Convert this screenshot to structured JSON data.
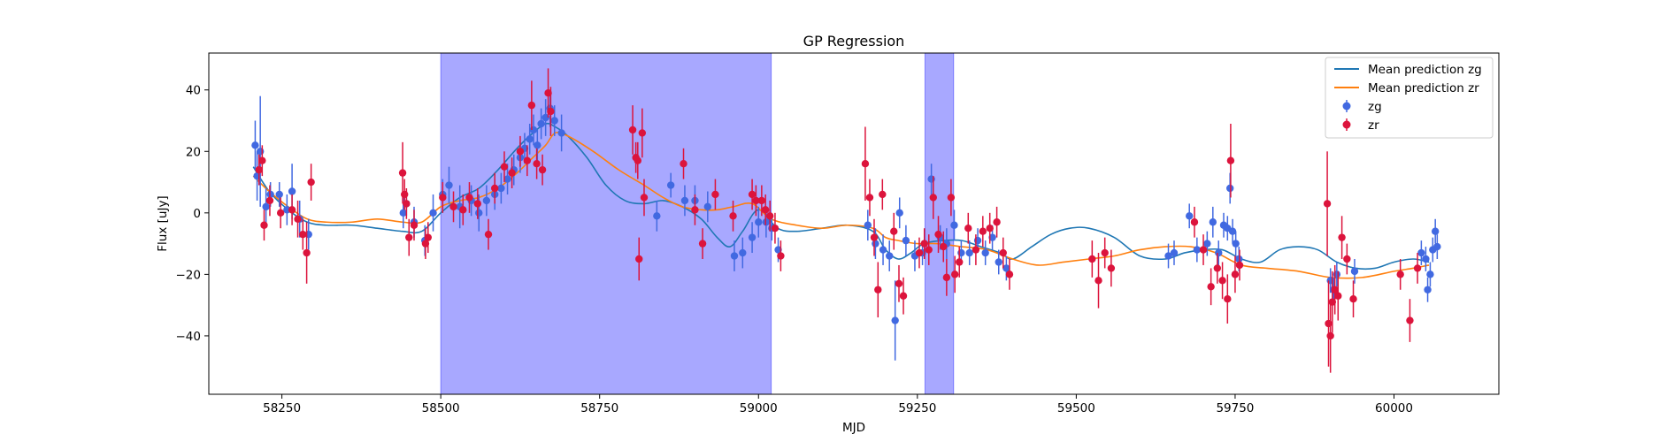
{
  "chart_data": {
    "type": "scatter",
    "title": "GP Regression",
    "xlabel": "MJD",
    "ylabel": "Flux [uJy]",
    "xlim": [
      58135,
      60165
    ],
    "ylim": [
      -59,
      52
    ],
    "xticks": [
      58250,
      58500,
      58750,
      59000,
      59250,
      59500,
      59750,
      60000
    ],
    "xtick_labels": [
      "58250",
      "58500",
      "58750",
      "59000",
      "59250",
      "59500",
      "59750",
      "60000"
    ],
    "yticks": [
      -40,
      -20,
      0,
      20,
      40
    ],
    "ytick_labels": [
      "−40",
      "−20",
      "0",
      "20",
      "40"
    ],
    "legend_position": "upper right",
    "colors": {
      "zg_line": "#1f77b4",
      "zr_line": "#ff7f0e",
      "zg_points": "#4169e1",
      "zr_points": "#dc143c",
      "shade": "#0000ff"
    },
    "shaded_regions": [
      {
        "x0": 58500,
        "x1": 59020
      },
      {
        "x0": 59262,
        "x1": 59307
      }
    ],
    "lines": [
      {
        "name": "Mean prediction zg",
        "x": [
          58205,
          58230,
          58260,
          58290,
          58320,
          58360,
          58400,
          58440,
          58470,
          58500,
          58530,
          58560,
          58590,
          58620,
          58645,
          58665,
          58680,
          58700,
          58730,
          58760,
          58790,
          58820,
          58850,
          58880,
          58910,
          58935,
          58955,
          58975,
          59000,
          59030,
          59060,
          59100,
          59140,
          59180,
          59200,
          59220,
          59240,
          59260,
          59290,
          59320,
          59350,
          59380,
          59400,
          59430,
          59460,
          59490,
          59520,
          59560,
          59600,
          59640,
          59670,
          59700,
          59730,
          59760,
          59790,
          59820,
          59850,
          59880,
          59910,
          59940,
          59970,
          60000,
          60030,
          60055
        ],
        "y": [
          15,
          7,
          1,
          -3,
          -4,
          -4,
          -5,
          -6,
          -6,
          0,
          5,
          8,
          14,
          21,
          26,
          29,
          28,
          25,
          18,
          9,
          4,
          3,
          4,
          2,
          -2,
          -8,
          -11,
          -6,
          1,
          -5,
          -6,
          -5,
          -4,
          -6,
          -12,
          -15,
          -13,
          -10,
          -9,
          -9,
          -11,
          -13,
          -15,
          -11,
          -7,
          -5,
          -5,
          -8,
          -14,
          -15,
          -13,
          -12,
          -12,
          -15,
          -16,
          -12,
          -11,
          -12,
          -16,
          -18,
          -18,
          -16,
          -15,
          -16
        ]
      },
      {
        "name": "Mean prediction zr",
        "x": [
          58205,
          58230,
          58260,
          58290,
          58320,
          58360,
          58400,
          58440,
          58470,
          58500,
          58530,
          58560,
          58590,
          58620,
          58645,
          58665,
          58680,
          58700,
          58740,
          58780,
          58820,
          58850,
          58880,
          58910,
          58935,
          58960,
          58990,
          59020,
          59060,
          59100,
          59140,
          59180,
          59200,
          59220,
          59250,
          59280,
          59320,
          59360,
          59400,
          59440,
          59480,
          59520,
          59560,
          59600,
          59640,
          59680,
          59720,
          59760,
          59800,
          59850,
          59900,
          59950,
          60000,
          60030,
          60055
        ],
        "y": [
          12,
          7,
          2,
          -2,
          -3,
          -3,
          -2,
          -3,
          -3,
          2,
          4,
          5,
          8,
          13,
          18,
          22,
          26,
          25,
          20,
          14,
          9,
          5,
          2,
          1,
          1,
          2,
          3,
          -2,
          -4,
          -5,
          -4,
          -5,
          -8,
          -9,
          -10,
          -10,
          -11,
          -12,
          -15,
          -17,
          -16,
          -15,
          -14,
          -12,
          -11,
          -11,
          -13,
          -17,
          -18,
          -19,
          -21,
          -21,
          -19,
          -18,
          -17
        ]
      }
    ],
    "series": [
      {
        "name": "zg",
        "points": [
          [
            58208,
            22,
            8
          ],
          [
            58211,
            12,
            8
          ],
          [
            58216,
            20,
            18
          ],
          [
            58225,
            2,
            6
          ],
          [
            58232,
            6,
            4
          ],
          [
            58246,
            6,
            4
          ],
          [
            58258,
            1,
            5
          ],
          [
            58266,
            7,
            9
          ],
          [
            58278,
            -2,
            6
          ],
          [
            58292,
            -7,
            5
          ],
          [
            58441,
            0,
            5
          ],
          [
            58446,
            3,
            4
          ],
          [
            58458,
            -3,
            5
          ],
          [
            58475,
            -9,
            5
          ],
          [
            58488,
            0,
            6
          ],
          [
            58503,
            6,
            5
          ],
          [
            58513,
            9,
            6
          ],
          [
            58530,
            2,
            7
          ],
          [
            58548,
            4,
            5
          ],
          [
            58560,
            0,
            6
          ],
          [
            58572,
            4,
            5
          ],
          [
            58585,
            6,
            5
          ],
          [
            58595,
            8,
            5
          ],
          [
            58605,
            11,
            5
          ],
          [
            58615,
            14,
            5
          ],
          [
            58625,
            18,
            5
          ],
          [
            58632,
            21,
            5
          ],
          [
            58640,
            24,
            5
          ],
          [
            58646,
            27,
            5
          ],
          [
            58652,
            22,
            5
          ],
          [
            58658,
            29,
            5
          ],
          [
            58665,
            31,
            6
          ],
          [
            58672,
            34,
            6
          ],
          [
            58679,
            30,
            5
          ],
          [
            58690,
            26,
            6
          ],
          [
            58840,
            -1,
            5
          ],
          [
            58862,
            9,
            4
          ],
          [
            58884,
            4,
            5
          ],
          [
            58900,
            4,
            5
          ],
          [
            58920,
            2,
            5
          ],
          [
            58962,
            -14,
            5
          ],
          [
            58975,
            -13,
            5
          ],
          [
            58990,
            -8,
            5
          ],
          [
            59000,
            -3,
            5
          ],
          [
            59012,
            -3,
            5
          ],
          [
            59021,
            -5,
            4
          ],
          [
            59031,
            -12,
            4
          ],
          [
            59172,
            -4,
            5
          ],
          [
            59184,
            -10,
            5
          ],
          [
            59196,
            -12,
            5
          ],
          [
            59206,
            -14,
            5
          ],
          [
            59215,
            -35,
            13
          ],
          [
            59222,
            0,
            5
          ],
          [
            59232,
            -9,
            5
          ],
          [
            59246,
            -14,
            5
          ],
          [
            59258,
            -13,
            4
          ],
          [
            59272,
            11,
            5
          ],
          [
            59286,
            -8,
            4
          ],
          [
            59296,
            -10,
            5
          ],
          [
            59308,
            -4,
            5
          ],
          [
            59319,
            -13,
            4
          ],
          [
            59332,
            -13,
            4
          ],
          [
            59345,
            -9,
            4
          ],
          [
            59357,
            -13,
            4
          ],
          [
            59368,
            -8,
            4
          ],
          [
            59378,
            -16,
            4
          ],
          [
            59390,
            -18,
            4
          ],
          [
            59645,
            -14,
            4
          ],
          [
            59654,
            -13,
            4
          ],
          [
            59678,
            -1,
            4
          ],
          [
            59690,
            -12,
            4
          ],
          [
            59706,
            -10,
            4
          ],
          [
            59715,
            -3,
            5
          ],
          [
            59724,
            -13,
            4
          ],
          [
            59732,
            -4,
            4
          ],
          [
            59738,
            -5,
            4
          ],
          [
            59742,
            8,
            5
          ],
          [
            59746,
            -6,
            4
          ],
          [
            59751,
            -10,
            4
          ],
          [
            59756,
            -15,
            4
          ],
          [
            59900,
            -22,
            4
          ],
          [
            59905,
            -25,
            4
          ],
          [
            59910,
            -20,
            4
          ],
          [
            59938,
            -19,
            4
          ],
          [
            60043,
            -13,
            4
          ],
          [
            60050,
            -15,
            4
          ],
          [
            60053,
            -25,
            4
          ],
          [
            60057,
            -20,
            4
          ],
          [
            60061,
            -12,
            4
          ],
          [
            60065,
            -6,
            4
          ],
          [
            60068,
            -11,
            4
          ]
        ]
      },
      {
        "name": "zr",
        "points": [
          [
            58214,
            14,
            5
          ],
          [
            58219,
            17,
            5
          ],
          [
            58222,
            -4,
            5
          ],
          [
            58231,
            4,
            5
          ],
          [
            58248,
            0,
            5
          ],
          [
            58266,
            1,
            5
          ],
          [
            58275,
            -2,
            6
          ],
          [
            58283,
            -7,
            5
          ],
          [
            58289,
            -13,
            10
          ],
          [
            58296,
            10,
            6
          ],
          [
            58440,
            13,
            10
          ],
          [
            58443,
            6,
            5
          ],
          [
            58446,
            3,
            5
          ],
          [
            58450,
            -8,
            6
          ],
          [
            58458,
            -4,
            5
          ],
          [
            58476,
            -10,
            5
          ],
          [
            58480,
            -8,
            5
          ],
          [
            58503,
            5,
            5
          ],
          [
            58520,
            2,
            5
          ],
          [
            58535,
            1,
            5
          ],
          [
            58545,
            5,
            5
          ],
          [
            58558,
            3,
            5
          ],
          [
            58575,
            -7,
            5
          ],
          [
            58585,
            8,
            5
          ],
          [
            58600,
            15,
            5
          ],
          [
            58612,
            13,
            5
          ],
          [
            58625,
            20,
            5
          ],
          [
            58636,
            17,
            5
          ],
          [
            58643,
            35,
            8
          ],
          [
            58651,
            16,
            5
          ],
          [
            58660,
            14,
            5
          ],
          [
            58669,
            39,
            8
          ],
          [
            58673,
            33,
            8
          ],
          [
            58802,
            27,
            8
          ],
          [
            58807,
            18,
            5
          ],
          [
            58810,
            17,
            6
          ],
          [
            58817,
            26,
            8
          ],
          [
            58820,
            5,
            6
          ],
          [
            58812,
            -15,
            7
          ],
          [
            58882,
            16,
            5
          ],
          [
            58900,
            1,
            5
          ],
          [
            58912,
            -10,
            5
          ],
          [
            58932,
            6,
            5
          ],
          [
            58960,
            -1,
            5
          ],
          [
            58990,
            6,
            5
          ],
          [
            58996,
            4,
            5
          ],
          [
            59005,
            4,
            5
          ],
          [
            59011,
            1,
            5
          ],
          [
            59018,
            -1,
            5
          ],
          [
            59026,
            -5,
            5
          ],
          [
            59035,
            -14,
            5
          ],
          [
            59168,
            16,
            12
          ],
          [
            59175,
            5,
            6
          ],
          [
            59182,
            -8,
            6
          ],
          [
            59188,
            -25,
            9
          ],
          [
            59195,
            6,
            5
          ],
          [
            59213,
            -6,
            6
          ],
          [
            59221,
            -23,
            6
          ],
          [
            59228,
            -27,
            6
          ],
          [
            59253,
            -13,
            5
          ],
          [
            59261,
            -10,
            5
          ],
          [
            59268,
            -12,
            5
          ],
          [
            59275,
            5,
            7
          ],
          [
            59283,
            -7,
            6
          ],
          [
            59291,
            -11,
            5
          ],
          [
            59296,
            -21,
            6
          ],
          [
            59303,
            5,
            6
          ],
          [
            59309,
            -20,
            6
          ],
          [
            59316,
            -16,
            5
          ],
          [
            59330,
            -5,
            5
          ],
          [
            59342,
            -12,
            5
          ],
          [
            59353,
            -6,
            5
          ],
          [
            59364,
            -5,
            5
          ],
          [
            59375,
            -3,
            5
          ],
          [
            59385,
            -13,
            5
          ],
          [
            59395,
            -20,
            5
          ],
          [
            59525,
            -15,
            6
          ],
          [
            59535,
            -22,
            9
          ],
          [
            59545,
            -13,
            5
          ],
          [
            59555,
            -18,
            6
          ],
          [
            59686,
            -3,
            5
          ],
          [
            59700,
            -12,
            5
          ],
          [
            59712,
            -24,
            6
          ],
          [
            59722,
            -18,
            5
          ],
          [
            59730,
            -22,
            6
          ],
          [
            59738,
            -28,
            8
          ],
          [
            59743,
            17,
            12
          ],
          [
            59750,
            -20,
            6
          ],
          [
            59757,
            -17,
            5
          ],
          [
            59895,
            3,
            17
          ],
          [
            59897,
            -36,
            14
          ],
          [
            59900,
            -40,
            12
          ],
          [
            59903,
            -29,
            10
          ],
          [
            59907,
            -25,
            8
          ],
          [
            59912,
            -27,
            8
          ],
          [
            59918,
            -8,
            7
          ],
          [
            59926,
            -15,
            5
          ],
          [
            59936,
            -28,
            6
          ],
          [
            60010,
            -20,
            5
          ],
          [
            60025,
            -35,
            7
          ],
          [
            60037,
            -18,
            5
          ]
        ]
      }
    ]
  }
}
